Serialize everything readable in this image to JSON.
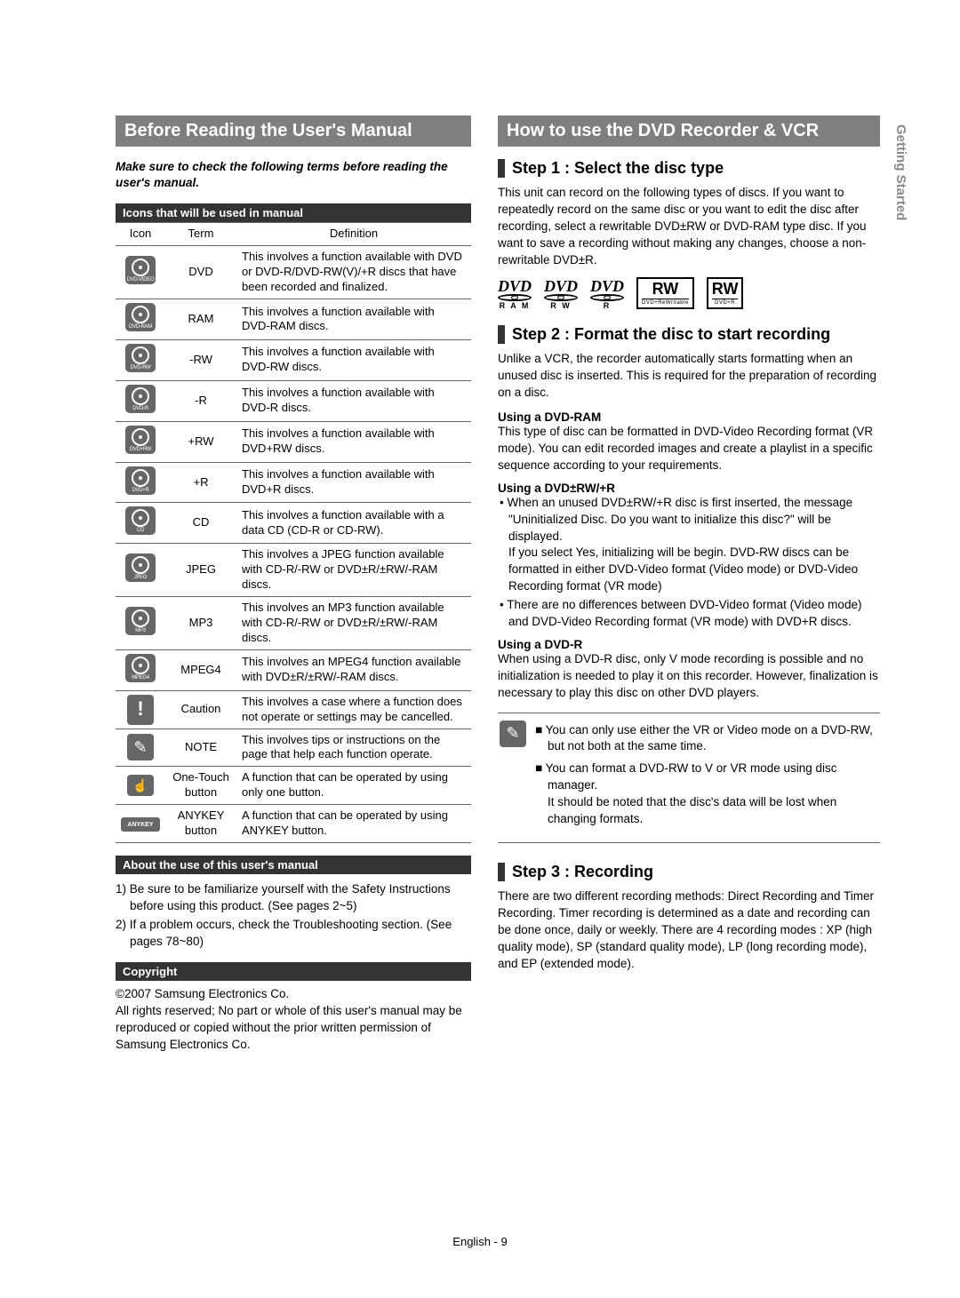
{
  "side_tab": "Getting Started",
  "left": {
    "h1": "Before Reading the User's Manual",
    "intro": "Make sure to check the following terms before reading the user's manual.",
    "icons_bar": "Icons that will be used in manual",
    "table": {
      "headers": [
        "Icon",
        "Term",
        "Definition"
      ],
      "rows": [
        {
          "iconLabel": "DVD-VIDEO",
          "term": "DVD",
          "def": "This involves a function available with DVD or DVD-R/DVD-RW(V)/+R discs that have been recorded and finalized."
        },
        {
          "iconLabel": "DVD-RAM",
          "term": "RAM",
          "def": "This involves a function available with DVD-RAM discs."
        },
        {
          "iconLabel": "DVD-RW",
          "term": "-RW",
          "def": "This involves a function available with DVD-RW discs."
        },
        {
          "iconLabel": "DVD-R",
          "term": "-R",
          "def": "This involves a function available with DVD-R discs."
        },
        {
          "iconLabel": "DVD+RW",
          "term": "+RW",
          "def": "This involves a function available with DVD+RW discs."
        },
        {
          "iconLabel": "DVD+R",
          "term": "+R",
          "def": "This involves a function available with DVD+R discs."
        },
        {
          "iconLabel": "CD",
          "term": "CD",
          "def": "This involves a function available with a data CD (CD-R or CD-RW)."
        },
        {
          "iconLabel": "JPEG",
          "term": "JPEG",
          "def": "This involves a JPEG function available with CD-R/-RW or DVD±R/±RW/-RAM discs."
        },
        {
          "iconLabel": "MP3",
          "term": "MP3",
          "def": "This involves an MP3 function available with CD-R/-RW or DVD±R/±RW/-RAM discs."
        },
        {
          "iconLabel": "MPEG4",
          "term": "MPEG4",
          "def": "This involves an MPEG4 function available with DVD±R/±RW/-RAM discs."
        },
        {
          "iconType": "exclaim",
          "term": "Caution",
          "def": "This involves a case where a function does not operate or settings may be cancelled."
        },
        {
          "iconType": "note",
          "term": "NOTE",
          "def": "This involves tips or instructions on the page that help each function operate."
        },
        {
          "iconType": "onetouch",
          "term": "One-Touch button",
          "def": "A function that can be operated by using only one button."
        },
        {
          "iconType": "anykey",
          "term": "ANYKEY button",
          "def": "A function that can be operated by using ANYKEY button."
        }
      ]
    },
    "about_bar": "About the use of this user's manual",
    "about_items": [
      "1) Be sure to be familiarize yourself with the Safety Instructions before using this product. (See pages 2~5)",
      "2) If a problem occurs, check the Troubleshooting section. (See pages 78~80)"
    ],
    "copyright_bar": "Copyright",
    "copyright_text": "©2007 Samsung Electronics Co.\nAll rights reserved; No part or whole of this user's manual may be reproduced or copied without the prior written permission of Samsung Electronics Co."
  },
  "right": {
    "h1": "How to use the DVD Recorder & VCR",
    "step1_h": "Step 1 : Select the disc type",
    "step1_p": "This unit can record on the following types of discs. If you want to repeatedly record on the same disc or you want to edit the disc after recording, select a rewritable DVD±RW or DVD-RAM type disc. If you want to save a recording without making any changes, choose a non-rewritable DVD±R.",
    "disc_logos": [
      {
        "top": "DVD",
        "sub": "R A M"
      },
      {
        "top": "DVD",
        "sub": "R W"
      },
      {
        "top": "DVD",
        "sub": "R"
      },
      {
        "top": "RW",
        "sub": "DVD+ReWritable",
        "boxed": true
      },
      {
        "top": "RW",
        "sub": "DVD+R",
        "boxed": true
      }
    ],
    "step2_h": "Step 2 : Format the disc to start recording",
    "step2_p": "Unlike a VCR, the recorder automatically starts formatting when an unused disc is inserted. This is required for the preparation of recording on a disc.",
    "sub_ram_h": "Using a DVD-RAM",
    "sub_ram_p": "This type of disc can be formatted in DVD-Video Recording format (VR mode). You can edit recorded images and create a playlist in a specific sequence according to your requirements.",
    "sub_rwr_h": "Using a DVD±RW/+R",
    "sub_rwr_items": [
      "• When an unused DVD±RW/+R disc is first inserted, the message \"Uninitialized Disc. Do you want to initialize this disc?\" will be displayed.\nIf you select Yes, initializing will be begin. DVD-RW discs can be formatted in either DVD-Video format (Video mode) or DVD-Video Recording format (VR mode)",
      "• There are no differences between DVD-Video format (Video mode) and DVD-Video Recording format (VR mode) with DVD+R discs."
    ],
    "sub_r_h": "Using a DVD-R",
    "sub_r_p": "When using a DVD-R disc, only V mode recording is possible and no initialization is needed to play it on this recorder. However, finalization is necessary to play this disc on other DVD players.",
    "note_items": [
      "■ You can only use either the VR or Video mode on a DVD-RW, but not both at the same time.",
      "■ You can format a DVD-RW to V or VR mode using disc manager.\nIt should be noted that the disc's data will be lost when changing formats."
    ],
    "step3_h": "Step 3 : Recording",
    "step3_p": "There are two different recording methods: Direct Recording and Timer Recording. Timer recording is determined as a date and recording can be done once, daily or weekly. There are 4 recording modes : XP (high quality mode), SP (standard quality mode), LP (long recording mode), and EP (extended mode)."
  },
  "footer": "English - 9"
}
